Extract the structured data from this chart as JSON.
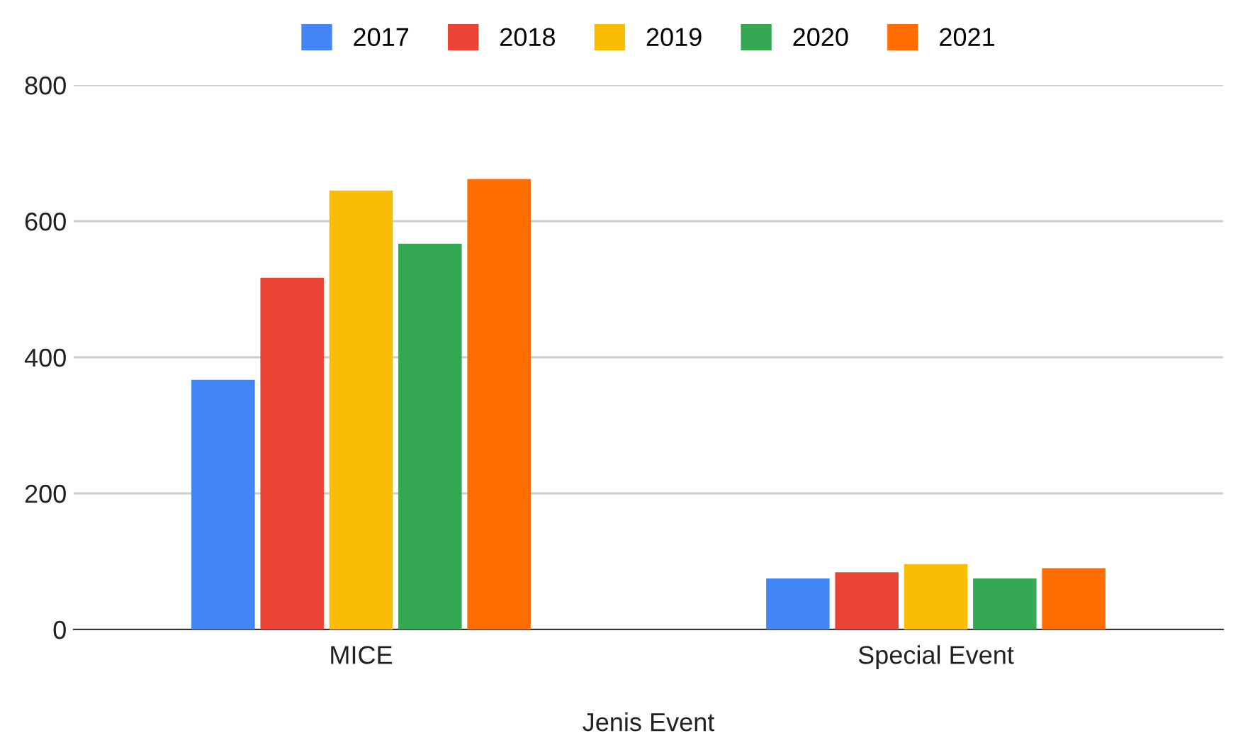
{
  "chart_data": {
    "type": "bar",
    "xlabel": "Jenis Event",
    "categories": [
      "MICE",
      "Special Event"
    ],
    "series": [
      {
        "name": "2017",
        "color": "#4285f4",
        "values": [
          367,
          75
        ]
      },
      {
        "name": "2018",
        "color": "#ea4335",
        "values": [
          517,
          84
        ]
      },
      {
        "name": "2019",
        "color": "#fbbc04",
        "values": [
          645,
          96
        ]
      },
      {
        "name": "2020",
        "color": "#34a853",
        "values": [
          567,
          75
        ]
      },
      {
        "name": "2021",
        "color": "#ff6d01",
        "values": [
          662,
          90
        ]
      }
    ],
    "ylim": [
      0,
      800
    ],
    "yticks": [
      0,
      200,
      400,
      600,
      800
    ],
    "grid": "y",
    "legend": "top"
  }
}
